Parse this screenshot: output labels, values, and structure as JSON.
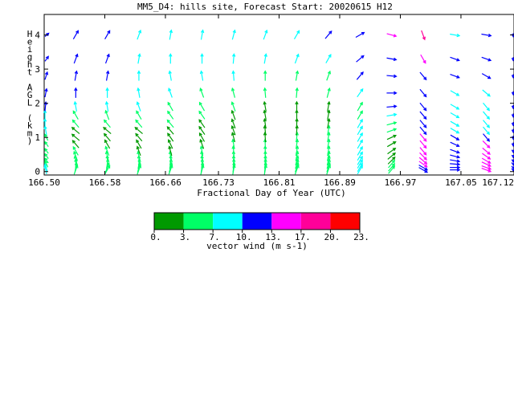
{
  "chart_data": {
    "type": "vector",
    "title": "MM5_D4: hills site,  Forecast Start: 20020615 H12",
    "xlabel": "Fractional Day of Year (UTC)",
    "ylabel": "Height AGL (km)",
    "ylabel_chars": [
      "H",
      "e",
      "i",
      "g",
      "h",
      "t",
      "",
      "A",
      "G",
      "L",
      "",
      "(",
      "k",
      "m",
      ")"
    ],
    "x_ticks": [
      "166.50",
      "166.58",
      "166.66",
      "166.73",
      "166.81",
      "166.89",
      "166.97",
      "167.05",
      "167.12"
    ],
    "x_tick_values": [
      166.5,
      166.58,
      166.66,
      166.73,
      166.81,
      166.89,
      166.97,
      167.05,
      167.12
    ],
    "y_ticks": [
      "0",
      "1",
      "2",
      "3",
      "4"
    ],
    "y_tick_values": [
      0,
      1,
      2,
      3,
      4
    ],
    "xlim": [
      166.5,
      167.12
    ],
    "ylim": [
      -0.1,
      4.6
    ],
    "colorbar": {
      "label": "vector wind (m s-1)",
      "ticks": [
        "0.",
        "3.",
        "7.",
        "10.",
        "13.",
        "17.",
        "20.",
        "23."
      ],
      "colors": [
        "#009900",
        "#00ff66",
        "#00ffff",
        "#0000ff",
        "#ff00ff",
        "#ff0099",
        "#ff0000"
      ]
    },
    "profile_times": [
      166.5,
      166.5417,
      166.5833,
      166.625,
      166.6667,
      166.7083,
      166.75,
      166.7917,
      166.8333,
      166.875,
      166.9167,
      166.9583,
      167.0,
      167.0417,
      167.0833,
      167.125
    ],
    "levels_km": [
      0.05,
      0.12,
      0.22,
      0.32,
      0.45,
      0.6,
      0.8,
      1.0,
      1.2,
      1.4,
      1.65,
      1.9,
      2.3,
      2.8,
      3.3,
      4.0
    ],
    "profiles": [
      {
        "color_idx": [
          2,
          2,
          1,
          1,
          1,
          1,
          1,
          1,
          2,
          2,
          2,
          3,
          3,
          3,
          3,
          3
        ],
        "dir": [
          150,
          140,
          130,
          120,
          120,
          120,
          120,
          130,
          150,
          170,
          180,
          200,
          210,
          220,
          240,
          250
        ]
      },
      {
        "color_idx": [
          1,
          1,
          1,
          1,
          1,
          1,
          0,
          0,
          0,
          1,
          1,
          2,
          3,
          3,
          3,
          3
        ],
        "dir": [
          200,
          190,
          180,
          170,
          160,
          150,
          140,
          130,
          130,
          140,
          150,
          170,
          180,
          190,
          200,
          210
        ]
      },
      {
        "color_idx": [
          1,
          1,
          1,
          1,
          1,
          1,
          0,
          0,
          0,
          1,
          1,
          2,
          2,
          3,
          3,
          3
        ],
        "dir": [
          210,
          200,
          190,
          180,
          170,
          160,
          150,
          140,
          130,
          140,
          160,
          170,
          180,
          190,
          200,
          210
        ]
      },
      {
        "color_idx": [
          1,
          1,
          1,
          1,
          1,
          0,
          0,
          0,
          0,
          1,
          1,
          2,
          2,
          2,
          2,
          2
        ],
        "dir": [
          200,
          195,
          190,
          180,
          170,
          160,
          150,
          140,
          130,
          140,
          150,
          160,
          170,
          180,
          190,
          200
        ]
      },
      {
        "color_idx": [
          1,
          1,
          1,
          1,
          1,
          0,
          0,
          0,
          0,
          1,
          1,
          1,
          2,
          2,
          2,
          2
        ],
        "dir": [
          200,
          195,
          190,
          185,
          175,
          165,
          155,
          145,
          140,
          140,
          145,
          150,
          160,
          170,
          180,
          190
        ]
      },
      {
        "color_idx": [
          1,
          1,
          1,
          1,
          1,
          1,
          0,
          0,
          0,
          0,
          1,
          1,
          1,
          2,
          2,
          2
        ],
        "dir": [
          195,
          190,
          185,
          180,
          175,
          170,
          160,
          150,
          145,
          145,
          145,
          150,
          160,
          170,
          180,
          190
        ]
      },
      {
        "color_idx": [
          1,
          1,
          1,
          1,
          1,
          1,
          1,
          0,
          0,
          0,
          0,
          1,
          1,
          2,
          2,
          2
        ],
        "dir": [
          190,
          188,
          185,
          182,
          180,
          175,
          170,
          165,
          160,
          160,
          160,
          160,
          165,
          175,
          185,
          195
        ]
      },
      {
        "color_idx": [
          1,
          1,
          1,
          1,
          1,
          1,
          1,
          0,
          0,
          0,
          0,
          0,
          1,
          1,
          2,
          2
        ],
        "dir": [
          190,
          188,
          186,
          184,
          182,
          180,
          178,
          176,
          174,
          172,
          170,
          170,
          175,
          180,
          190,
          200
        ]
      },
      {
        "color_idx": [
          1,
          1,
          1,
          1,
          1,
          1,
          1,
          1,
          0,
          0,
          0,
          0,
          1,
          1,
          2,
          2
        ],
        "dir": [
          200,
          198,
          196,
          194,
          192,
          190,
          188,
          186,
          184,
          182,
          180,
          180,
          185,
          190,
          200,
          210
        ]
      },
      {
        "color_idx": [
          1,
          1,
          1,
          1,
          1,
          1,
          1,
          1,
          1,
          0,
          0,
          0,
          1,
          1,
          2,
          3
        ],
        "dir": [
          200,
          198,
          196,
          194,
          192,
          190,
          190,
          190,
          190,
          190,
          190,
          190,
          195,
          200,
          210,
          220
        ]
      },
      {
        "color_idx": [
          2,
          2,
          2,
          2,
          2,
          2,
          2,
          2,
          2,
          2,
          1,
          1,
          2,
          3,
          3,
          3
        ],
        "dir": [
          210,
          210,
          210,
          210,
          210,
          210,
          210,
          210,
          210,
          210,
          210,
          210,
          215,
          220,
          230,
          240
        ]
      },
      {
        "color_idx": [
          1,
          1,
          1,
          0,
          0,
          0,
          0,
          0,
          1,
          1,
          2,
          3,
          3,
          3,
          3,
          4
        ],
        "dir": [
          220,
          220,
          220,
          225,
          230,
          235,
          240,
          245,
          250,
          255,
          260,
          265,
          270,
          275,
          280,
          285
        ]
      },
      {
        "color_idx": [
          3,
          3,
          4,
          4,
          4,
          4,
          4,
          4,
          3,
          3,
          3,
          3,
          3,
          3,
          4,
          5
        ],
        "dir": [
          300,
          300,
          305,
          310,
          315,
          320,
          320,
          320,
          320,
          320,
          320,
          320,
          320,
          320,
          330,
          340
        ]
      },
      {
        "color_idx": [
          3,
          3,
          3,
          3,
          3,
          3,
          3,
          3,
          2,
          2,
          2,
          2,
          2,
          3,
          3,
          2
        ],
        "dir": [
          270,
          270,
          275,
          280,
          285,
          290,
          295,
          300,
          300,
          300,
          300,
          300,
          300,
          290,
          290,
          280
        ]
      },
      {
        "color_idx": [
          4,
          4,
          4,
          4,
          4,
          4,
          4,
          3,
          2,
          2,
          2,
          2,
          2,
          3,
          3,
          3
        ],
        "dir": [
          290,
          290,
          295,
          300,
          305,
          310,
          315,
          320,
          320,
          320,
          320,
          320,
          310,
          300,
          290,
          280
        ]
      },
      {
        "color_idx": [
          3,
          3,
          3,
          3,
          3,
          3,
          3,
          3,
          3,
          3,
          3,
          3,
          3,
          3,
          3,
          3
        ],
        "dir": [
          280,
          280,
          280,
          285,
          285,
          285,
          290,
          290,
          290,
          290,
          290,
          290,
          290,
          290,
          290,
          290
        ]
      }
    ]
  }
}
